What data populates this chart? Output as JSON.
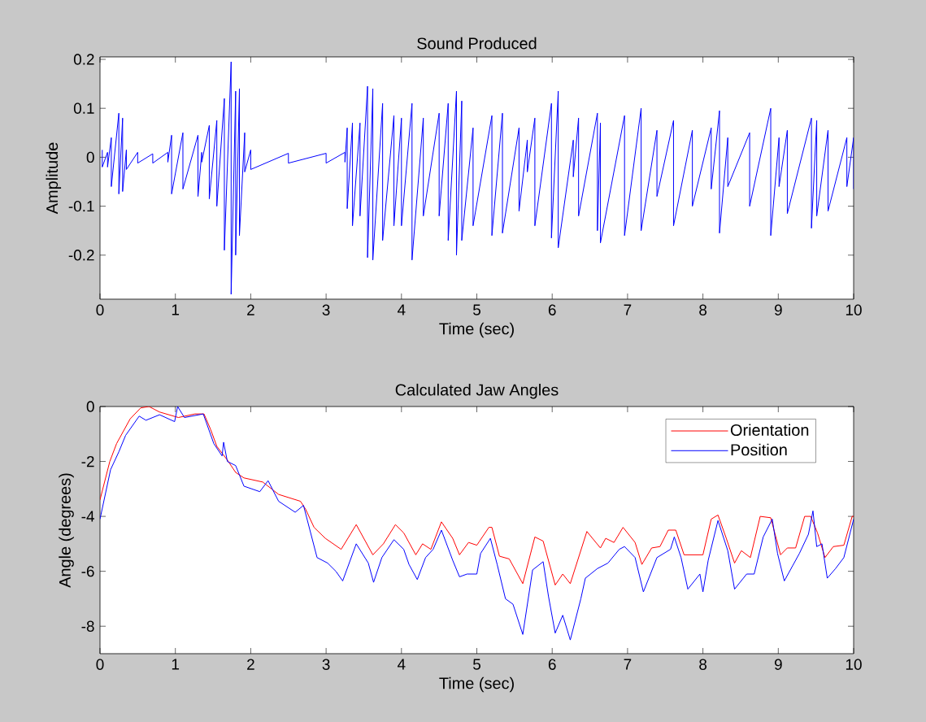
{
  "chart_data": [
    {
      "type": "line",
      "title": "Sound Produced",
      "xlabel": "Time (sec)",
      "ylabel": "Amplitude",
      "color": "#0000ff",
      "x": [
        0.03,
        0.03,
        0.1,
        0.1,
        0.15,
        0.15,
        0.25,
        0.25,
        0.3,
        0.3,
        0.35,
        0.35,
        0.5,
        0.5,
        0.7,
        0.7,
        0.9,
        0.9,
        0.95,
        0.95,
        1.1,
        1.1,
        1.3,
        1.3,
        1.35,
        1.35,
        1.45,
        1.45,
        1.55,
        1.55,
        1.65,
        1.65,
        1.74,
        1.74,
        1.8,
        1.8,
        1.85,
        1.85,
        1.92,
        1.92,
        2,
        2,
        2.5,
        2.5,
        3,
        3,
        3.25,
        3.25,
        3.28,
        3.28,
        3.35,
        3.35,
        3.45,
        3.45,
        3.55,
        3.55,
        3.62,
        3.62,
        3.75,
        3.75,
        3.9,
        3.9,
        4,
        4,
        4.14,
        4.14,
        4.29,
        4.29,
        4.5,
        4.5,
        4.62,
        4.62,
        4.73,
        4.73,
        4.8,
        4.8,
        4.95,
        4.95,
        5.2,
        5.2,
        5.34,
        5.34,
        5.56,
        5.56,
        5.67,
        5.67,
        5.77,
        5.77,
        5.99,
        5.99,
        6.08,
        6.08,
        6.28,
        6.28,
        6.35,
        6.35,
        6.6,
        6.6,
        6.64,
        6.64,
        6.96,
        6.96,
        7.18,
        7.18,
        7.39,
        7.39,
        7.61,
        7.61,
        7.86,
        7.86,
        8.11,
        8.11,
        8.22,
        8.22,
        8.33,
        8.33,
        8.62,
        8.62,
        8.9,
        8.9,
        9.01,
        9.01,
        9.12,
        9.12,
        9.44,
        9.44,
        9.51,
        9.51,
        9.66,
        9.66,
        9.91,
        9.91,
        10,
        10
      ],
      "values": [
        0.015,
        -0.02,
        0.01,
        -0.02,
        0.04,
        -0.06,
        0.09,
        -0.075,
        0.08,
        -0.07,
        0.015,
        -0.025,
        0.01,
        -0.012,
        0.007,
        -0.012,
        0.01,
        -0.01,
        0.045,
        -0.075,
        0.05,
        -0.065,
        0.045,
        -0.08,
        0.01,
        -0.01,
        0.065,
        -0.085,
        0.075,
        -0.1,
        0.12,
        -0.19,
        0.195,
        -0.28,
        0.135,
        -0.2,
        0.14,
        -0.16,
        0.05,
        -0.03,
        0.015,
        -0.025,
        0.008,
        -0.012,
        0.008,
        -0.012,
        0.01,
        -0.01,
        0.06,
        -0.105,
        0.07,
        -0.14,
        0.07,
        -0.12,
        0.145,
        -0.205,
        0.14,
        -0.21,
        0.11,
        -0.17,
        0.085,
        -0.14,
        0.08,
        -0.14,
        0.11,
        -0.21,
        0.08,
        -0.12,
        0.09,
        -0.12,
        0.11,
        -0.17,
        0.135,
        -0.2,
        0.115,
        -0.17,
        0.06,
        -0.14,
        0.085,
        -0.16,
        0.09,
        -0.155,
        0.06,
        -0.11,
        0.035,
        -0.03,
        0.08,
        -0.14,
        0.11,
        -0.165,
        0.135,
        -0.185,
        0.035,
        -0.04,
        0.08,
        -0.12,
        0.09,
        -0.15,
        0.07,
        -0.175,
        0.085,
        -0.16,
        0.1,
        -0.15,
        0.055,
        -0.08,
        0.075,
        -0.14,
        0.055,
        -0.1,
        0.06,
        -0.065,
        0.095,
        -0.155,
        0.04,
        -0.06,
        0.05,
        -0.1,
        0.1,
        -0.16,
        0.04,
        -0.06,
        0.055,
        -0.115,
        0.08,
        -0.145,
        0.075,
        -0.12,
        0.055,
        -0.11,
        0.04,
        -0.06,
        0.04,
        -0.065
      ],
      "xlim": [
        0,
        10
      ],
      "ylim": [
        -0.29,
        0.205
      ],
      "xticks": [
        0,
        1,
        2,
        3,
        4,
        5,
        6,
        7,
        8,
        9,
        10
      ],
      "yticks": [
        -0.2,
        -0.1,
        0,
        0.1,
        0.2
      ]
    },
    {
      "type": "line",
      "title": "Calculated Jaw Angles",
      "xlabel": "Time (sec)",
      "ylabel": "Angle (degrees)",
      "legend": "top right",
      "xlim": [
        0,
        10
      ],
      "ylim": [
        -9,
        0
      ],
      "xticks": [
        0,
        1,
        2,
        3,
        4,
        5,
        6,
        7,
        8,
        9,
        10
      ],
      "yticks": [
        -8,
        -6,
        -4,
        -2,
        0
      ],
      "series": [
        {
          "name": "Orientation",
          "color": "#ff0000",
          "x": [
            0,
            0.13,
            0.22,
            0.4,
            0.54,
            0.65,
            0.79,
            1.04,
            1.26,
            1.38,
            1.47,
            1.55,
            1.69,
            1.8,
            1.91,
            2.16,
            2.37,
            2.66,
            2.73,
            2.84,
            2.99,
            3.2,
            3.4,
            3.62,
            3.76,
            3.92,
            4.03,
            4.19,
            4.28,
            4.39,
            4.53,
            4.68,
            4.77,
            4.89,
            5.0,
            5.16,
            5.2,
            5.3,
            5.43,
            5.61,
            5.77,
            5.88,
            6.04,
            6.14,
            6.24,
            6.46,
            6.64,
            6.71,
            6.82,
            6.94,
            7.1,
            7.19,
            7.32,
            7.43,
            7.54,
            7.64,
            7.75,
            8.0,
            8.11,
            8.2,
            8.31,
            8.42,
            8.51,
            8.63,
            8.76,
            8.9,
            9.03,
            9.12,
            9.23,
            9.35,
            9.43,
            9.52,
            9.62,
            9.73,
            9.87,
            9.98,
            10
          ],
          "values": [
            -3.4,
            -2.0,
            -1.35,
            -0.45,
            -0.05,
            0,
            -0.2,
            -0.4,
            -0.27,
            -0.27,
            -0.85,
            -1.45,
            -1.95,
            -2.4,
            -2.6,
            -2.75,
            -3.2,
            -3.45,
            -3.75,
            -4.4,
            -4.8,
            -5.2,
            -4.3,
            -5.4,
            -5.0,
            -4.3,
            -4.6,
            -5.4,
            -5.0,
            -5.2,
            -4.2,
            -4.8,
            -5.4,
            -4.95,
            -5.05,
            -4.4,
            -4.4,
            -5.45,
            -5.55,
            -6.45,
            -4.75,
            -4.9,
            -6.5,
            -6.1,
            -6.45,
            -4.55,
            -5.15,
            -4.8,
            -4.95,
            -4.4,
            -4.95,
            -5.75,
            -5.15,
            -5.1,
            -4.5,
            -4.5,
            -5.4,
            -5.4,
            -4.1,
            -3.95,
            -4.8,
            -5.7,
            -5.25,
            -5.5,
            -4.0,
            -4.05,
            -5.4,
            -5.15,
            -5.15,
            -4.0,
            -4.0,
            -4.6,
            -5.5,
            -5.1,
            -5.05,
            -4.0,
            -4.0
          ]
        },
        {
          "name": "Position",
          "color": "#0000ff",
          "x": [
            0,
            0.14,
            0.25,
            0.34,
            0.52,
            0.61,
            0.79,
            0.99,
            1.03,
            1.12,
            1.37,
            1.51,
            1.62,
            1.64,
            1.69,
            1.8,
            1.91,
            2.12,
            2.23,
            2.37,
            2.59,
            2.7,
            2.88,
            3.02,
            3.13,
            3.22,
            3.4,
            3.56,
            3.63,
            3.74,
            3.9,
            4.03,
            4.1,
            4.21,
            4.32,
            4.42,
            4.53,
            4.68,
            4.77,
            4.87,
            5.0,
            5.05,
            5.18,
            5.27,
            5.38,
            5.48,
            5.61,
            5.74,
            5.88,
            5.95,
            6.04,
            6.14,
            6.24,
            6.38,
            6.44,
            6.6,
            6.74,
            6.89,
            6.96,
            7.1,
            7.21,
            7.39,
            7.57,
            7.62,
            7.71,
            7.8,
            7.96,
            8.0,
            8.07,
            8.2,
            8.33,
            8.42,
            8.58,
            8.68,
            8.8,
            8.92,
            8.99,
            9.08,
            9.19,
            9.28,
            9.4,
            9.46,
            9.51,
            9.58,
            9.65,
            9.76,
            9.87,
            10
          ],
          "values": [
            -4.1,
            -2.3,
            -1.65,
            -1.05,
            -0.35,
            -0.5,
            -0.3,
            -0.55,
            0,
            -0.4,
            -0.27,
            -1.35,
            -1.8,
            -1.3,
            -2.0,
            -2.15,
            -2.9,
            -3.1,
            -2.7,
            -3.45,
            -3.85,
            -3.6,
            -5.5,
            -5.7,
            -6.0,
            -6.35,
            -5.0,
            -5.7,
            -6.4,
            -5.5,
            -4.85,
            -5.2,
            -5.75,
            -6.3,
            -5.5,
            -5.2,
            -4.5,
            -5.6,
            -6.2,
            -6.1,
            -6.1,
            -5.35,
            -4.8,
            -5.75,
            -7.0,
            -7.2,
            -8.3,
            -5.95,
            -5.65,
            -6.9,
            -8.25,
            -7.6,
            -8.5,
            -7.0,
            -6.25,
            -5.9,
            -5.7,
            -5.2,
            -5.1,
            -5.5,
            -6.75,
            -5.5,
            -5.2,
            -4.75,
            -5.5,
            -6.65,
            -6.1,
            -6.75,
            -5.6,
            -4.15,
            -5.25,
            -6.65,
            -6.1,
            -6.1,
            -4.75,
            -4.1,
            -5.35,
            -6.35,
            -5.8,
            -5.35,
            -4.65,
            -3.8,
            -5.1,
            -5.0,
            -6.25,
            -5.9,
            -5.5,
            -4.1
          ]
        }
      ]
    }
  ]
}
